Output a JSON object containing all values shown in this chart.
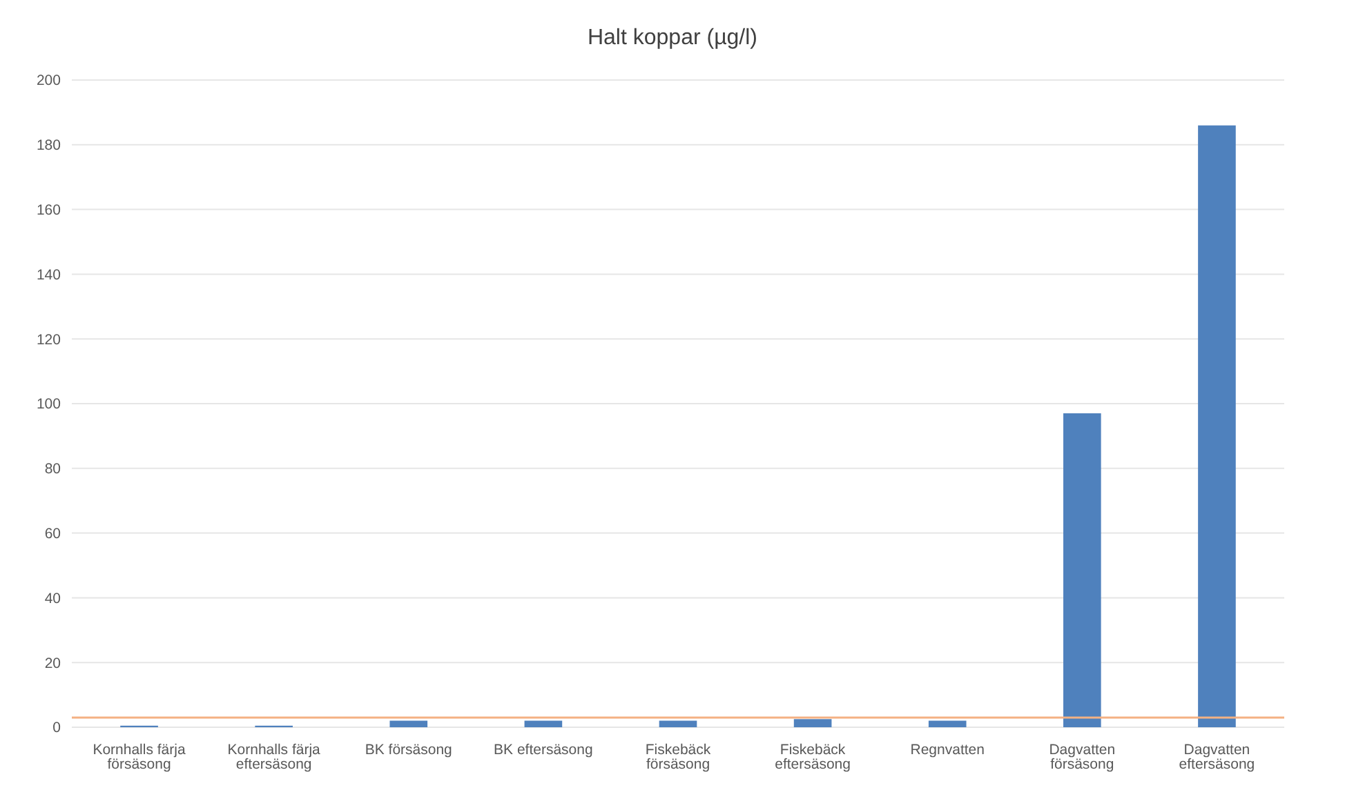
{
  "chart_data": {
    "type": "bar",
    "title": "Halt koppar (µg/l)",
    "categories": [
      "Kornhalls färja försäsong",
      "Kornhalls färja eftersäsong",
      "BK försäsong",
      "BK eftersäsong",
      "Fiskebäck försäsong",
      "Fiskebäck eftersäsong",
      "Regnvatten",
      "Dagvatten försäsong",
      "Dagvatten eftersäsong"
    ],
    "values": [
      0.5,
      0.5,
      2,
      2,
      2,
      2.5,
      2,
      97,
      186
    ],
    "color": "#4f81bd",
    "ylim": [
      0,
      200
    ],
    "yticks": [
      0,
      20,
      40,
      60,
      80,
      100,
      120,
      140,
      160,
      180,
      200
    ],
    "grid": "y",
    "ref_lines": [
      {
        "axis": "y",
        "value": 3,
        "color": "#f4b183"
      }
    ]
  }
}
